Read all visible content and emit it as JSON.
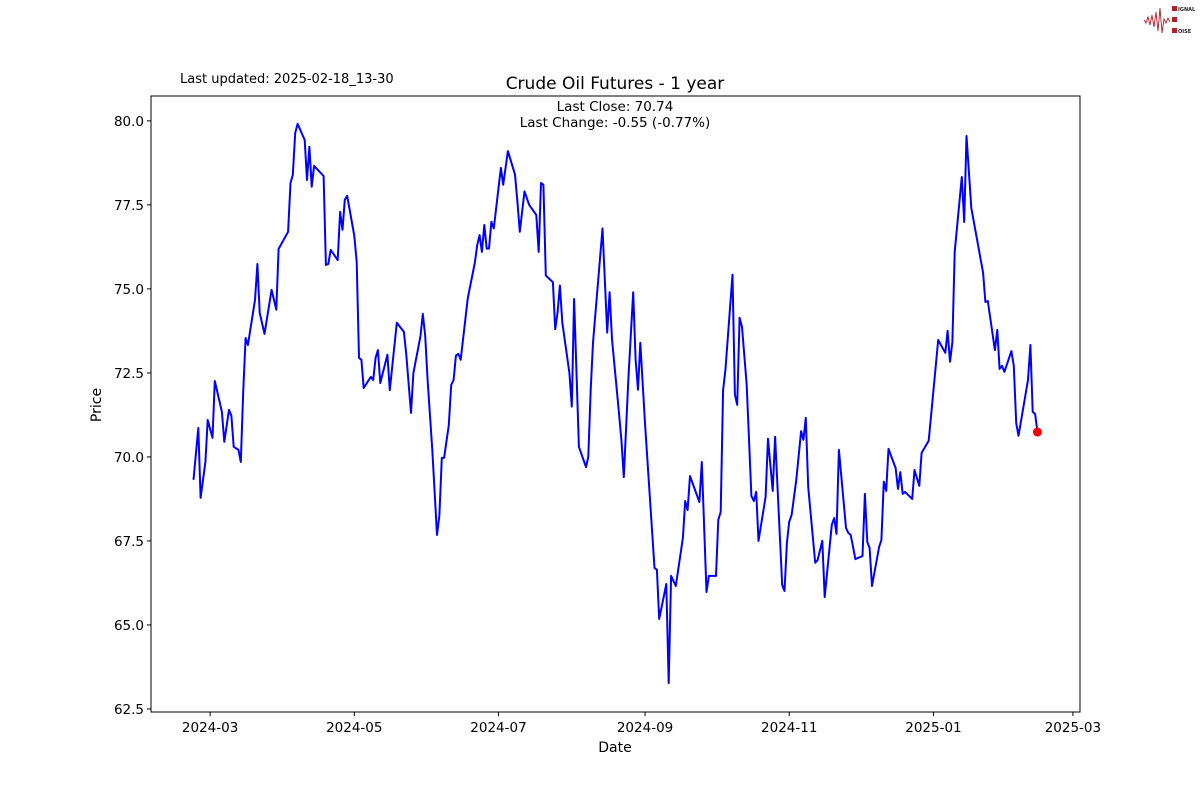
{
  "logo": {
    "lines": [
      "SIGNAL",
      "2",
      "NOISE"
    ],
    "color": "#b0202a"
  },
  "header": {
    "last_updated": "Last updated: 2025-02-18_13-30"
  },
  "chart_data": {
    "type": "line",
    "title": "Crude Oil Futures - 1 year",
    "annotation": {
      "last_close": "Last Close: 70.74",
      "last_change": "Last Change: -0.55 (-0.77%)"
    },
    "xlabel": "Date",
    "ylabel": "Price",
    "xlim": [
      "2024-02-05",
      "2025-03-04"
    ],
    "ylim": [
      62.41,
      80.74
    ],
    "grid": false,
    "line_color": "#0000ff",
    "marker_color": "#ff0000",
    "x_ticks": [
      "2024-03-01",
      "2024-05-01",
      "2024-07-01",
      "2024-09-01",
      "2024-11-01",
      "2025-01-01",
      "2025-03-01"
    ],
    "x_tick_labels": [
      "2024-03",
      "2024-05",
      "2024-07",
      "2024-09",
      "2024-11",
      "2025-01",
      "2025-03"
    ],
    "y_ticks": [
      62.5,
      65.0,
      67.5,
      70.0,
      72.5,
      75.0,
      77.5,
      80.0
    ],
    "y_tick_labels": [
      "62.5",
      "65.0",
      "67.5",
      "70.0",
      "72.5",
      "75.0",
      "77.5",
      "80.0"
    ],
    "last_point": {
      "date": "2025-02-14",
      "value": 70.74
    },
    "series": [
      {
        "dates": [
          "2024-02-23",
          "2024-02-25",
          "2024-02-26",
          "2024-02-28",
          "2024-02-29",
          "2024-03-02",
          "2024-03-03",
          "2024-03-06",
          "2024-03-07",
          "2024-03-09",
          "2024-03-10",
          "2024-03-11",
          "2024-03-13",
          "2024-03-14",
          "2024-03-15",
          "2024-03-16",
          "2024-03-17",
          "2024-03-20",
          "2024-03-21",
          "2024-03-22",
          "2024-03-24",
          "2024-03-27",
          "2024-03-29",
          "2024-03-30",
          "2024-04-03",
          "2024-04-04",
          "2024-04-05",
          "2024-04-06",
          "2024-04-07",
          "2024-04-10",
          "2024-04-11",
          "2024-04-12",
          "2024-04-13",
          "2024-04-14",
          "2024-04-18",
          "2024-04-19",
          "2024-04-20",
          "2024-04-21",
          "2024-04-24",
          "2024-04-25",
          "2024-04-26",
          "2024-04-27",
          "2024-04-28",
          "2024-05-01",
          "2024-05-02",
          "2024-05-03",
          "2024-05-04",
          "2024-05-05",
          "2024-05-08",
          "2024-05-09",
          "2024-05-10",
          "2024-05-11",
          "2024-05-12",
          "2024-05-15",
          "2024-05-16",
          "2024-05-19",
          "2024-05-22",
          "2024-05-23",
          "2024-05-25",
          "2024-05-26",
          "2024-05-29",
          "2024-05-30",
          "2024-05-31",
          "2024-06-01",
          "2024-06-03",
          "2024-06-05",
          "2024-06-06",
          "2024-06-07",
          "2024-06-08",
          "2024-06-10",
          "2024-06-11",
          "2024-06-12",
          "2024-06-13",
          "2024-06-14",
          "2024-06-15",
          "2024-06-18",
          "2024-06-21",
          "2024-06-22",
          "2024-06-23",
          "2024-06-24",
          "2024-06-25",
          "2024-06-26",
          "2024-06-27",
          "2024-06-28",
          "2024-06-29",
          "2024-07-01",
          "2024-07-02",
          "2024-07-03",
          "2024-07-05",
          "2024-07-08",
          "2024-07-09",
          "2024-07-10",
          "2024-07-12",
          "2024-07-14",
          "2024-07-17",
          "2024-07-18",
          "2024-07-19",
          "2024-07-20",
          "2024-07-21",
          "2024-07-24",
          "2024-07-25",
          "2024-07-26",
          "2024-07-27",
          "2024-07-28",
          "2024-07-31",
          "2024-08-01",
          "2024-08-02",
          "2024-08-04",
          "2024-08-07",
          "2024-08-08",
          "2024-08-09",
          "2024-08-10",
          "2024-08-14",
          "2024-08-16",
          "2024-08-17",
          "2024-08-18",
          "2024-08-21",
          "2024-08-22",
          "2024-08-23",
          "2024-08-25",
          "2024-08-27",
          "2024-08-28",
          "2024-08-29",
          "2024-08-30",
          "2024-09-01",
          "2024-09-05",
          "2024-09-06",
          "2024-09-07",
          "2024-09-10",
          "2024-09-11",
          "2024-09-12",
          "2024-09-14",
          "2024-09-17",
          "2024-09-18",
          "2024-09-19",
          "2024-09-20",
          "2024-09-24",
          "2024-09-25",
          "2024-09-27",
          "2024-09-28",
          "2024-10-01",
          "2024-10-02",
          "2024-10-03",
          "2024-10-04",
          "2024-10-05",
          "2024-10-08",
          "2024-10-09",
          "2024-10-10",
          "2024-10-11",
          "2024-10-12",
          "2024-10-14",
          "2024-10-16",
          "2024-10-17",
          "2024-10-18",
          "2024-10-19",
          "2024-10-22",
          "2024-10-23",
          "2024-10-25",
          "2024-10-26",
          "2024-10-29",
          "2024-10-30",
          "2024-10-31",
          "2024-11-01",
          "2024-11-02",
          "2024-11-04",
          "2024-11-06",
          "2024-11-07",
          "2024-11-08",
          "2024-11-09",
          "2024-11-12",
          "2024-11-13",
          "2024-11-15",
          "2024-11-16",
          "2024-11-19",
          "2024-11-20",
          "2024-11-21",
          "2024-11-22",
          "2024-11-25",
          "2024-11-26",
          "2024-11-27",
          "2024-11-29",
          "2024-12-02",
          "2024-12-03",
          "2024-12-04",
          "2024-12-05",
          "2024-12-06",
          "2024-12-09",
          "2024-12-10",
          "2024-12-11",
          "2024-12-12",
          "2024-12-13",
          "2024-12-16",
          "2024-12-17",
          "2024-12-18",
          "2024-12-19",
          "2024-12-20",
          "2024-12-23",
          "2024-12-24",
          "2024-12-26",
          "2024-12-27",
          "2024-12-30",
          "2025-01-03",
          "2025-01-06",
          "2025-01-07",
          "2025-01-08",
          "2025-01-09",
          "2025-01-10",
          "2025-01-13",
          "2025-01-14",
          "2025-01-15",
          "2025-01-17",
          "2025-01-22",
          "2025-01-23",
          "2025-01-24",
          "2025-01-27",
          "2025-01-28",
          "2025-01-29",
          "2025-01-30",
          "2025-01-31",
          "2025-02-03",
          "2025-02-04",
          "2025-02-05",
          "2025-02-06",
          "2025-02-10",
          "2025-02-11",
          "2025-02-12",
          "2025-02-13",
          "2025-02-14"
        ],
        "values": [
          69.32,
          70.86,
          68.78,
          69.85,
          71.1,
          70.57,
          72.26,
          71.34,
          70.45,
          71.4,
          71.22,
          70.3,
          70.21,
          69.85,
          71.93,
          73.54,
          73.33,
          74.67,
          75.74,
          74.29,
          73.66,
          74.97,
          74.38,
          76.19,
          76.7,
          78.15,
          78.39,
          79.64,
          79.91,
          79.43,
          78.24,
          79.23,
          78.04,
          78.66,
          78.36,
          75.71,
          75.74,
          76.16,
          75.86,
          77.29,
          76.76,
          77.65,
          77.77,
          76.58,
          75.8,
          72.95,
          72.89,
          72.05,
          72.38,
          72.29,
          72.95,
          73.18,
          72.2,
          73.04,
          71.99,
          73.99,
          73.72,
          73.04,
          71.31,
          72.5,
          73.6,
          74.26,
          73.6,
          72.29,
          70.21,
          67.68,
          68.27,
          69.97,
          69.97,
          70.95,
          72.14,
          72.29,
          73.01,
          73.07,
          72.89,
          74.73,
          75.77,
          76.3,
          76.6,
          76.1,
          76.9,
          76.2,
          76.2,
          77.0,
          76.8,
          78.0,
          78.6,
          78.1,
          79.1,
          78.4,
          77.6,
          76.7,
          77.9,
          77.5,
          77.2,
          76.1,
          78.15,
          78.1,
          75.4,
          75.2,
          73.8,
          74.3,
          75.1,
          74.0,
          72.5,
          71.5,
          74.7,
          70.3,
          69.7,
          70.0,
          72.0,
          73.4,
          76.8,
          73.7,
          74.9,
          73.5,
          71.3,
          70.5,
          69.4,
          72.4,
          74.9,
          72.9,
          72.0,
          73.4,
          71.0,
          66.7,
          66.64,
          65.18,
          66.22,
          63.27,
          66.46,
          66.16,
          67.59,
          68.69,
          68.42,
          69.43,
          68.66,
          69.85,
          65.98,
          66.46,
          66.46,
          68.13,
          68.36,
          71.99,
          72.59,
          75.42,
          71.85,
          71.55,
          74.14,
          73.87,
          72.14,
          68.84,
          68.69,
          68.96,
          67.5,
          68.81,
          70.54,
          68.99,
          70.6,
          66.19,
          66.01,
          67.44,
          68.07,
          68.27,
          69.32,
          70.77,
          70.51,
          71.16,
          69.11,
          66.85,
          66.93,
          67.5,
          65.83,
          67.98,
          68.18,
          67.71,
          70.21,
          67.89,
          67.74,
          67.68,
          66.96,
          67.05,
          68.9,
          67.47,
          67.29,
          66.16,
          67.32,
          67.53,
          69.26,
          68.99,
          70.24,
          69.67,
          69.05,
          69.55,
          68.9,
          68.96,
          68.75,
          69.61,
          69.14,
          70.12,
          70.48,
          73.48,
          73.1,
          73.75,
          72.83,
          73.42,
          76.1,
          78.33,
          76.99,
          79.55,
          77.41,
          75.48,
          74.61,
          74.64,
          73.18,
          73.78,
          72.62,
          72.71,
          72.53,
          73.15,
          72.71,
          71.01,
          70.63,
          72.29,
          73.33,
          71.34,
          71.28,
          70.74
        ]
      }
    ]
  }
}
